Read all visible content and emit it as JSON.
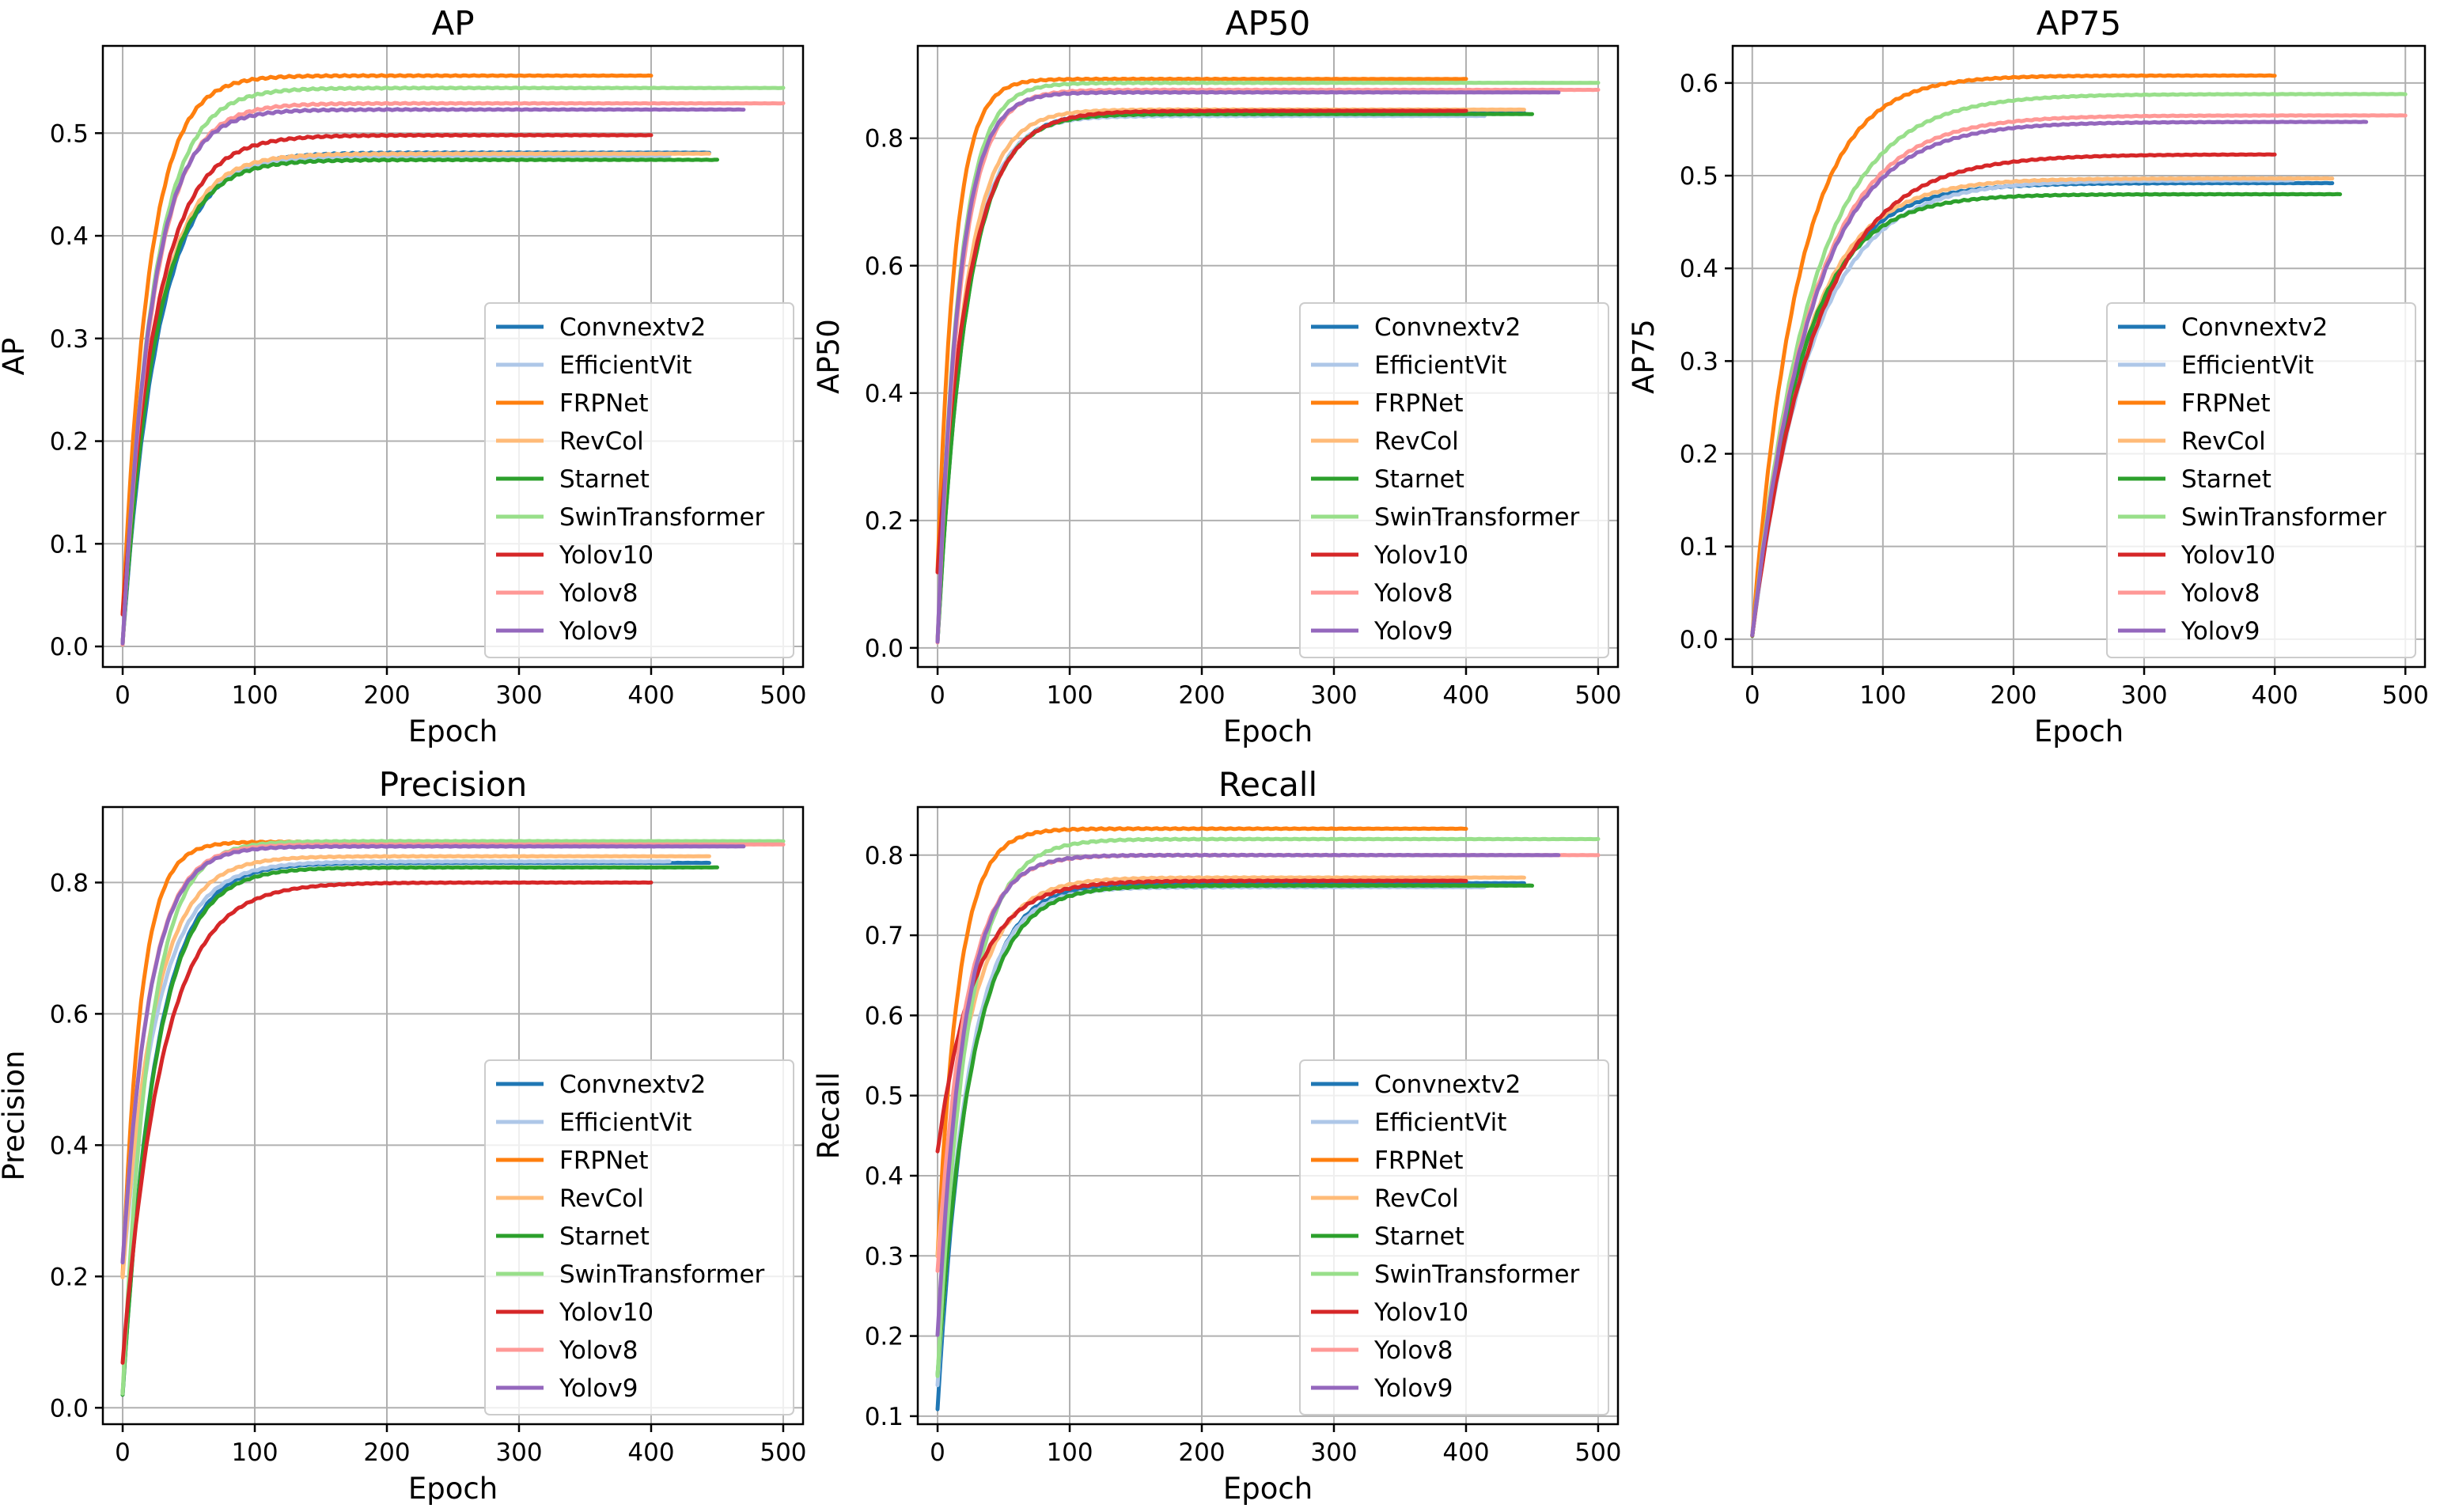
{
  "figure": {
    "colors": {
      "background": "#ffffff",
      "grid": "#b0b0b0",
      "axes": "#000000"
    }
  },
  "chart_data": [
    {
      "type": "line",
      "title": "AP",
      "xlabel": "Epoch",
      "ylabel": "AP",
      "xlim": [
        -15,
        515
      ],
      "ylim": [
        -0.02,
        0.585
      ],
      "xticks": [
        0,
        100,
        200,
        300,
        400,
        500
      ],
      "xtick_labels": [
        "0",
        "100",
        "200",
        "300",
        "400",
        "500"
      ],
      "yticks": [
        0.0,
        0.1,
        0.2,
        0.3,
        0.4,
        0.5
      ],
      "ytick_labels": [
        "0.0",
        "0.1",
        "0.2",
        "0.3",
        "0.4",
        "0.5"
      ],
      "grid": true,
      "legend_position": "lower-right",
      "series": [
        {
          "name": "Convnextv2",
          "color": "#1f77b4",
          "start": 0.003,
          "final": 0.481,
          "end_epoch": 445,
          "k": 27
        },
        {
          "name": "EfficientVit",
          "color": "#aec7e8",
          "start": 0.003,
          "final": 0.478,
          "end_epoch": 415,
          "k": 25
        },
        {
          "name": "FRPNet",
          "color": "#ff7f0e",
          "start": 0.03,
          "final": 0.556,
          "end_epoch": 400,
          "k": 20
        },
        {
          "name": "RevCol",
          "color": "#ffbb78",
          "start": 0.003,
          "final": 0.48,
          "end_epoch": 445,
          "k": 25
        },
        {
          "name": "Starnet",
          "color": "#2ca02c",
          "start": 0.003,
          "final": 0.474,
          "end_epoch": 450,
          "k": 25
        },
        {
          "name": "SwinTransformer",
          "color": "#98df8a",
          "start": 0.003,
          "final": 0.544,
          "end_epoch": 500,
          "k": 23
        },
        {
          "name": "Yolov10",
          "color": "#d62728",
          "start": 0.03,
          "final": 0.498,
          "end_epoch": 400,
          "k": 26
        },
        {
          "name": "Yolov8",
          "color": "#ff9896",
          "start": 0.003,
          "final": 0.529,
          "end_epoch": 500,
          "k": 23
        },
        {
          "name": "Yolov9",
          "color": "#9467bd",
          "start": 0.003,
          "final": 0.523,
          "end_epoch": 470,
          "k": 22
        }
      ]
    },
    {
      "type": "line",
      "title": "AP50",
      "xlabel": "Epoch",
      "ylabel": "AP50",
      "xlim": [
        -15,
        515
      ],
      "ylim": [
        -0.03,
        0.945
      ],
      "xticks": [
        0,
        100,
        200,
        300,
        400,
        500
      ],
      "xtick_labels": [
        "0",
        "100",
        "200",
        "300",
        "400",
        "500"
      ],
      "yticks": [
        0.0,
        0.2,
        0.4,
        0.6,
        0.8
      ],
      "ytick_labels": [
        "0.0",
        "0.2",
        "0.4",
        "0.6",
        "0.8"
      ],
      "grid": true,
      "legend_position": "lower-right",
      "series": [
        {
          "name": "Convnextv2",
          "color": "#1f77b4",
          "start": 0.01,
          "final": 0.84,
          "end_epoch": 445,
          "k": 22
        },
        {
          "name": "EfficientVit",
          "color": "#aec7e8",
          "start": 0.01,
          "final": 0.835,
          "end_epoch": 415,
          "k": 21
        },
        {
          "name": "FRPNet",
          "color": "#ff7f0e",
          "start": 0.12,
          "final": 0.893,
          "end_epoch": 400,
          "k": 13
        },
        {
          "name": "RevCol",
          "color": "#ffbb78",
          "start": 0.01,
          "final": 0.845,
          "end_epoch": 445,
          "k": 20
        },
        {
          "name": "Starnet",
          "color": "#2ca02c",
          "start": 0.01,
          "final": 0.838,
          "end_epoch": 450,
          "k": 22
        },
        {
          "name": "SwinTransformer",
          "color": "#98df8a",
          "start": 0.01,
          "final": 0.887,
          "end_epoch": 500,
          "k": 16
        },
        {
          "name": "Yolov10",
          "color": "#d62728",
          "start": 0.12,
          "final": 0.843,
          "end_epoch": 400,
          "k": 24
        },
        {
          "name": "Yolov8",
          "color": "#ff9896",
          "start": 0.01,
          "final": 0.876,
          "end_epoch": 500,
          "k": 17
        },
        {
          "name": "Yolov9",
          "color": "#9467bd",
          "start": 0.01,
          "final": 0.872,
          "end_epoch": 470,
          "k": 16
        }
      ]
    },
    {
      "type": "line",
      "title": "AP75",
      "xlabel": "Epoch",
      "ylabel": "AP75",
      "xlim": [
        -15,
        515
      ],
      "ylim": [
        -0.03,
        0.64
      ],
      "xticks": [
        0,
        100,
        200,
        300,
        400,
        500
      ],
      "xtick_labels": [
        "0",
        "100",
        "200",
        "300",
        "400",
        "500"
      ],
      "yticks": [
        0.0,
        0.1,
        0.2,
        0.3,
        0.4,
        0.5,
        0.6
      ],
      "ytick_labels": [
        "0.0",
        "0.1",
        "0.2",
        "0.3",
        "0.4",
        "0.5",
        "0.6"
      ],
      "grid": true,
      "legend_position": "lower-right",
      "series": [
        {
          "name": "Convnextv2",
          "color": "#1f77b4",
          "start": 0.003,
          "final": 0.492,
          "end_epoch": 445,
          "k": 40
        },
        {
          "name": "EfficientVit",
          "color": "#aec7e8",
          "start": 0.003,
          "final": 0.495,
          "end_epoch": 415,
          "k": 45
        },
        {
          "name": "FRPNet",
          "color": "#ff7f0e",
          "start": 0.005,
          "final": 0.608,
          "end_epoch": 400,
          "k": 35
        },
        {
          "name": "RevCol",
          "color": "#ffbb78",
          "start": 0.003,
          "final": 0.497,
          "end_epoch": 445,
          "k": 40
        },
        {
          "name": "Starnet",
          "color": "#2ca02c",
          "start": 0.003,
          "final": 0.48,
          "end_epoch": 450,
          "k": 38
        },
        {
          "name": "SwinTransformer",
          "color": "#98df8a",
          "start": 0.003,
          "final": 0.588,
          "end_epoch": 500,
          "k": 45
        },
        {
          "name": "Yolov10",
          "color": "#d62728",
          "start": 0.005,
          "final": 0.523,
          "end_epoch": 400,
          "k": 48
        },
        {
          "name": "Yolov8",
          "color": "#ff9896",
          "start": 0.003,
          "final": 0.565,
          "end_epoch": 500,
          "k": 45
        },
        {
          "name": "Yolov9",
          "color": "#9467bd",
          "start": 0.003,
          "final": 0.558,
          "end_epoch": 470,
          "k": 45
        }
      ]
    },
    {
      "type": "line",
      "title": "Precision",
      "xlabel": "Epoch",
      "ylabel": "Precision",
      "xlim": [
        -15,
        515
      ],
      "ylim": [
        -0.025,
        0.915
      ],
      "xticks": [
        0,
        100,
        200,
        300,
        400,
        500
      ],
      "xtick_labels": [
        "0",
        "100",
        "200",
        "300",
        "400",
        "500"
      ],
      "yticks": [
        0.0,
        0.2,
        0.4,
        0.6,
        0.8
      ],
      "ytick_labels": [
        "0.0",
        "0.2",
        "0.4",
        "0.6",
        "0.8"
      ],
      "grid": true,
      "legend_position": "lower-right",
      "series": [
        {
          "name": "Convnextv2",
          "color": "#1f77b4",
          "start": 0.02,
          "final": 0.83,
          "end_epoch": 445,
          "k": 25
        },
        {
          "name": "EfficientVit",
          "color": "#aec7e8",
          "start": 0.2,
          "final": 0.832,
          "end_epoch": 415,
          "k": 26
        },
        {
          "name": "FRPNet",
          "color": "#ff7f0e",
          "start": 0.2,
          "final": 0.862,
          "end_epoch": 400,
          "k": 14
        },
        {
          "name": "RevCol",
          "color": "#ffbb78",
          "start": 0.2,
          "final": 0.84,
          "end_epoch": 445,
          "k": 24
        },
        {
          "name": "Starnet",
          "color": "#2ca02c",
          "start": 0.02,
          "final": 0.823,
          "end_epoch": 450,
          "k": 25
        },
        {
          "name": "SwinTransformer",
          "color": "#98df8a",
          "start": 0.02,
          "final": 0.863,
          "end_epoch": 500,
          "k": 20
        },
        {
          "name": "Yolov10",
          "color": "#d62728",
          "start": 0.07,
          "final": 0.8,
          "end_epoch": 400,
          "k": 30
        },
        {
          "name": "Yolov8",
          "color": "#ff9896",
          "start": 0.22,
          "final": 0.858,
          "end_epoch": 500,
          "k": 20
        },
        {
          "name": "Yolov9",
          "color": "#9467bd",
          "start": 0.22,
          "final": 0.855,
          "end_epoch": 470,
          "k": 20
        }
      ]
    },
    {
      "type": "line",
      "title": "Recall",
      "xlabel": "Epoch",
      "ylabel": "Recall",
      "xlim": [
        -15,
        515
      ],
      "ylim": [
        0.09,
        0.86
      ],
      "xticks": [
        0,
        100,
        200,
        300,
        400,
        500
      ],
      "xtick_labels": [
        "0",
        "100",
        "200",
        "300",
        "400",
        "500"
      ],
      "yticks": [
        0.1,
        0.2,
        0.3,
        0.4,
        0.5,
        0.6,
        0.7,
        0.8
      ],
      "ytick_labels": [
        "0.1",
        "0.2",
        "0.3",
        "0.4",
        "0.5",
        "0.6",
        "0.7",
        "0.8"
      ],
      "grid": true,
      "legend_position": "lower-right",
      "series": [
        {
          "name": "Convnextv2",
          "color": "#1f77b4",
          "start": 0.11,
          "final": 0.765,
          "end_epoch": 445,
          "k": 24
        },
        {
          "name": "EfficientVit",
          "color": "#aec7e8",
          "start": 0.14,
          "final": 0.76,
          "end_epoch": 415,
          "k": 24
        },
        {
          "name": "FRPNet",
          "color": "#ff7f0e",
          "start": 0.3,
          "final": 0.833,
          "end_epoch": 400,
          "k": 16
        },
        {
          "name": "RevCol",
          "color": "#ffbb78",
          "start": 0.3,
          "final": 0.772,
          "end_epoch": 445,
          "k": 25
        },
        {
          "name": "Starnet",
          "color": "#2ca02c",
          "start": 0.15,
          "final": 0.762,
          "end_epoch": 450,
          "k": 26
        },
        {
          "name": "SwinTransformer",
          "color": "#98df8a",
          "start": 0.15,
          "final": 0.82,
          "end_epoch": 500,
          "k": 22
        },
        {
          "name": "Yolov10",
          "color": "#d62728",
          "start": 0.43,
          "final": 0.768,
          "end_epoch": 400,
          "k": 28
        },
        {
          "name": "Yolov8",
          "color": "#ff9896",
          "start": 0.28,
          "final": 0.8,
          "end_epoch": 500,
          "k": 21
        },
        {
          "name": "Yolov9",
          "color": "#9467bd",
          "start": 0.2,
          "final": 0.8,
          "end_epoch": 470,
          "k": 20
        }
      ]
    }
  ]
}
